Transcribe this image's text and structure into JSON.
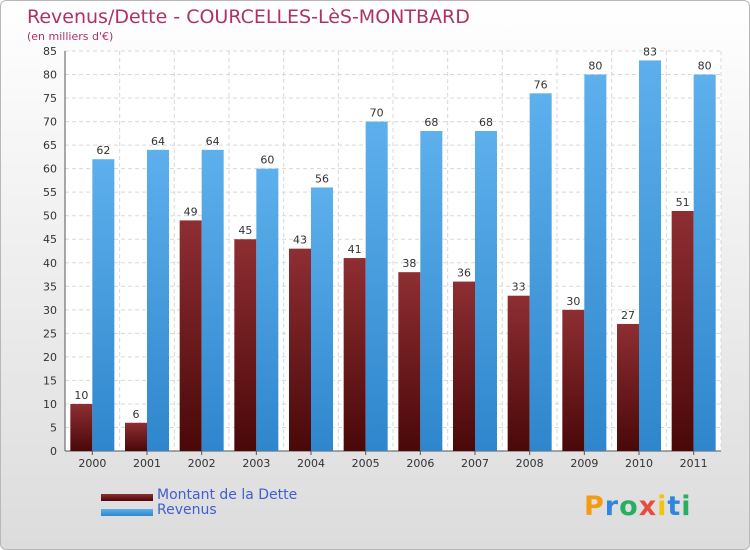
{
  "title": "Revenus/Dette - COURCELLES-LèS-MONTBARD",
  "subtitle": "(en milliers d'€)",
  "colors": {
    "debt": "#7a1d22",
    "revenue": "#4da6e6",
    "axis_text": "#333333",
    "title": "#b0306a"
  },
  "chart_data": {
    "type": "bar",
    "categories": [
      "2000",
      "2001",
      "2002",
      "2003",
      "2004",
      "2005",
      "2006",
      "2007",
      "2008",
      "2009",
      "2010",
      "2011"
    ],
    "series": [
      {
        "name": "Montant de la Dette",
        "values": [
          10,
          6,
          49,
          45,
          43,
          41,
          38,
          36,
          33,
          30,
          27,
          51
        ]
      },
      {
        "name": "Revenus",
        "values": [
          62,
          64,
          64,
          60,
          56,
          70,
          68,
          68,
          76,
          80,
          83,
          80
        ]
      }
    ],
    "yticks": [
      0,
      5,
      10,
      15,
      20,
      25,
      30,
      35,
      40,
      45,
      50,
      55,
      60,
      65,
      70,
      75,
      80,
      85
    ],
    "ylim": [
      0,
      85
    ],
    "grid": true,
    "legend": "bottom-left"
  },
  "legend": [
    {
      "label": "Montant de la Dette",
      "icon": "legend-swatch-debt"
    },
    {
      "label": "Revenus",
      "icon": "legend-swatch-revenue"
    }
  ],
  "logo": {
    "letters": [
      "P",
      "r",
      "o",
      "x",
      "i",
      "t",
      "i"
    ],
    "colors": [
      "#f39c12",
      "#2e86de",
      "#27ae60",
      "#e74c3c",
      "#f1c40f",
      "#2e86de",
      "#27ae60"
    ]
  }
}
